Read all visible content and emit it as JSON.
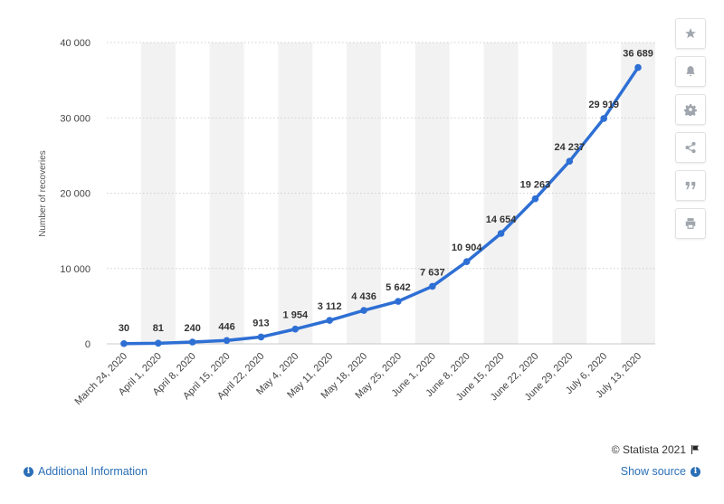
{
  "chart_data": {
    "type": "line",
    "categories": [
      "March 24, 2020",
      "April 1, 2020",
      "April 8, 2020",
      "April 15, 2020",
      "April 22, 2020",
      "May 4, 2020",
      "May 11, 2020",
      "May 18, 2020",
      "May 25, 2020",
      "June 1, 2020",
      "June 8, 2020",
      "June 15, 2020",
      "June 22, 2020",
      "June 29, 2020",
      "July 6, 2020",
      "July 13, 2020"
    ],
    "values": [
      30,
      81,
      240,
      446,
      913,
      1954,
      3112,
      4436,
      5642,
      7637,
      10904,
      14654,
      19263,
      24237,
      29919,
      36689
    ],
    "value_labels": [
      "30",
      "81",
      "240",
      "446",
      "913",
      "1 954",
      "3 112",
      "4 436",
      "5 642",
      "7 637",
      "10 904",
      "14 654",
      "19 263",
      "24 237",
      "29 919",
      "36 689"
    ],
    "ylabel": "Number of recoveries",
    "xlabel": "",
    "ylim": [
      0,
      40000
    ],
    "yticks": [
      0,
      10000,
      20000,
      30000,
      40000
    ],
    "ytick_labels": [
      "0",
      "10 000",
      "20 000",
      "30 000",
      "40 000"
    ],
    "grid": true,
    "line_color": "#2e6fd4",
    "band_color": "#f2f2f2"
  },
  "toolbar": {
    "buttons": [
      {
        "name": "favorite-button",
        "icon": "star-icon"
      },
      {
        "name": "notification-button",
        "icon": "bell-icon"
      },
      {
        "name": "settings-button",
        "icon": "gear-icon"
      },
      {
        "name": "share-button",
        "icon": "share-icon"
      },
      {
        "name": "cite-button",
        "icon": "quote-icon"
      },
      {
        "name": "print-button",
        "icon": "print-icon"
      }
    ]
  },
  "footer": {
    "credit": "© Statista 2021",
    "additional_info": "Additional Information",
    "show_source": "Show source"
  }
}
